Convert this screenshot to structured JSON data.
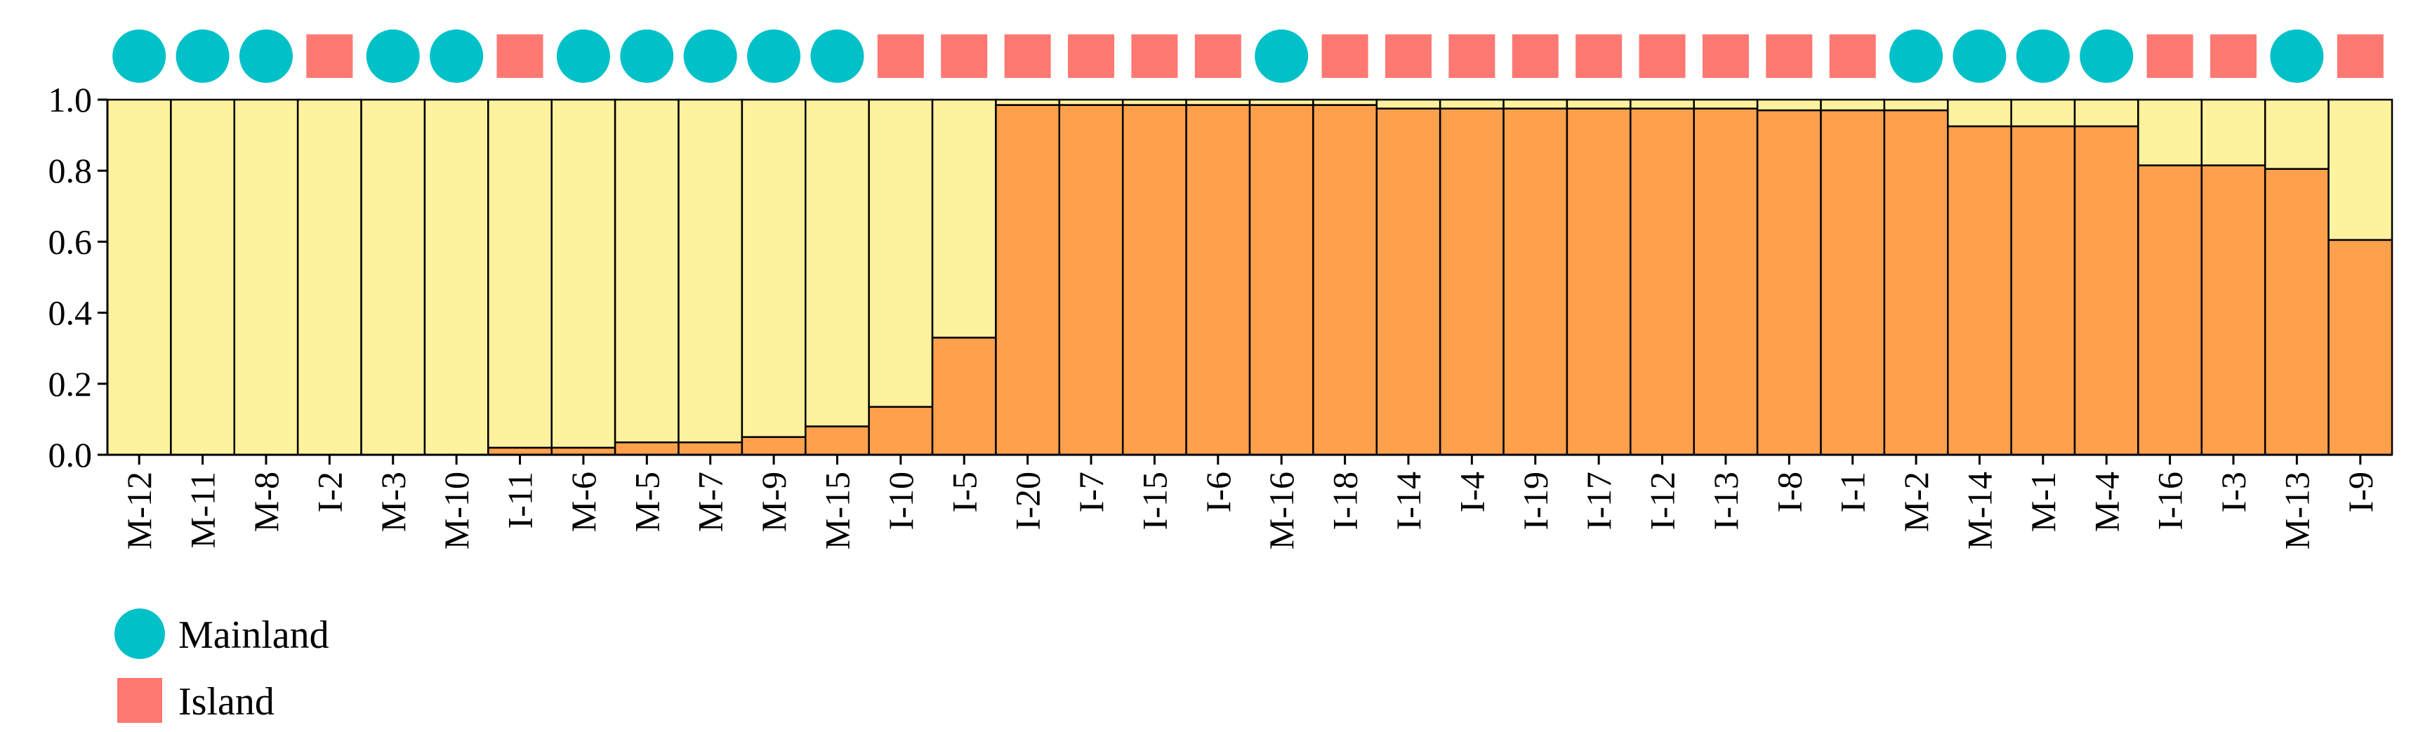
{
  "chart_data": {
    "type": "bar",
    "stacked": true,
    "ylim": [
      0,
      1.0
    ],
    "yticks": [
      "0.0",
      "0.2",
      "0.4",
      "0.6",
      "0.8",
      "1.0"
    ],
    "grid": false,
    "categories": [
      "M-12",
      "M-11",
      "M-8",
      "I-2",
      "M-3",
      "M-10",
      "I-11",
      "M-6",
      "M-5",
      "M-7",
      "M-9",
      "M-15",
      "I-10",
      "I-5",
      "I-20",
      "I-7",
      "I-15",
      "I-6",
      "M-16",
      "I-18",
      "I-14",
      "I-4",
      "I-19",
      "I-17",
      "I-12",
      "I-13",
      "I-8",
      "I-1",
      "M-2",
      "M-14",
      "M-1",
      "M-4",
      "I-16",
      "I-3",
      "M-13",
      "I-9"
    ],
    "groups": [
      "Mainland",
      "Mainland",
      "Mainland",
      "Island",
      "Mainland",
      "Mainland",
      "Island",
      "Mainland",
      "Mainland",
      "Mainland",
      "Mainland",
      "Mainland",
      "Island",
      "Island",
      "Island",
      "Island",
      "Island",
      "Island",
      "Mainland",
      "Island",
      "Island",
      "Island",
      "Island",
      "Island",
      "Island",
      "Island",
      "Island",
      "Island",
      "Mainland",
      "Mainland",
      "Mainland",
      "Mainland",
      "Island",
      "Island",
      "Mainland",
      "Island"
    ],
    "series": [
      {
        "color": "#FFA04D",
        "values": [
          0.0,
          0.0,
          0.0,
          0.0,
          0.0,
          0.0,
          0.02,
          0.02,
          0.035,
          0.035,
          0.05,
          0.08,
          0.135,
          0.33,
          0.985,
          0.985,
          0.985,
          0.985,
          0.985,
          0.985,
          0.975,
          0.975,
          0.975,
          0.975,
          0.975,
          0.975,
          0.97,
          0.97,
          0.97,
          0.925,
          0.925,
          0.925,
          0.815,
          0.815,
          0.805,
          0.605
        ]
      },
      {
        "color": "#FFF29E",
        "values": [
          1.0,
          1.0,
          1.0,
          1.0,
          1.0,
          1.0,
          0.98,
          0.98,
          0.965,
          0.965,
          0.95,
          0.92,
          0.865,
          0.67,
          0.015,
          0.015,
          0.015,
          0.015,
          0.015,
          0.015,
          0.025,
          0.025,
          0.025,
          0.025,
          0.025,
          0.025,
          0.03,
          0.03,
          0.03,
          0.075,
          0.075,
          0.075,
          0.185,
          0.185,
          0.195,
          0.395
        ]
      }
    ],
    "legend": {
      "placement": "bottom-left",
      "entries": [
        {
          "label": "Mainland",
          "shape": "circle",
          "color": "#00C0C8"
        },
        {
          "label": "Island",
          "shape": "square",
          "color": "#FF7872"
        }
      ]
    }
  }
}
